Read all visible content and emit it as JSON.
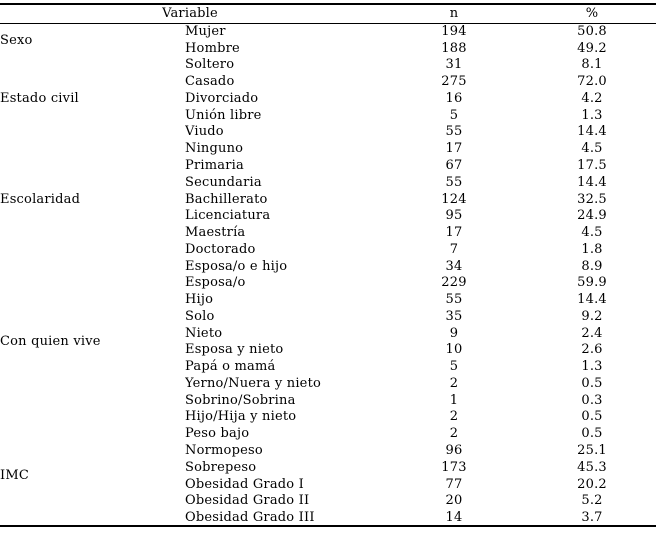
{
  "colors": {
    "background": "#ffffff",
    "text": "#000000",
    "rule": "#000000"
  },
  "table": {
    "headers": {
      "variable": "Variable",
      "n": "n",
      "pct": "%"
    },
    "groups": [
      {
        "label": "Sexo",
        "rows": [
          {
            "category": "Mujer",
            "n": "194",
            "pct": "50.8"
          },
          {
            "category": "Hombre",
            "n": "188",
            "pct": "49.2"
          }
        ]
      },
      {
        "label": "Estado civil",
        "rows": [
          {
            "category": "Soltero",
            "n": "31",
            "pct": "8.1"
          },
          {
            "category": "Casado",
            "n": "275",
            "pct": "72.0"
          },
          {
            "category": "Divorciado",
            "n": "16",
            "pct": "4.2"
          },
          {
            "category": "Unión libre",
            "n": "5",
            "pct": "1.3"
          },
          {
            "category": "Viudo",
            "n": "55",
            "pct": "14.4"
          }
        ]
      },
      {
        "label": "Escolaridad",
        "rows": [
          {
            "category": "Ninguno",
            "n": "17",
            "pct": "4.5"
          },
          {
            "category": "Primaria",
            "n": "67",
            "pct": "17.5"
          },
          {
            "category": "Secundaria",
            "n": "55",
            "pct": "14.4"
          },
          {
            "category": "Bachillerato",
            "n": "124",
            "pct": "32.5"
          },
          {
            "category": "Licenciatura",
            "n": "95",
            "pct": "24.9"
          },
          {
            "category": "Maestría",
            "n": "17",
            "pct": "4.5"
          },
          {
            "category": "Doctorado",
            "n": "7",
            "pct": "1.8"
          }
        ]
      },
      {
        "label": "Con quien vive",
        "rows": [
          {
            "category": "Esposa/o e hijo",
            "n": "34",
            "pct": "8.9"
          },
          {
            "category": "Esposa/o",
            "n": "229",
            "pct": "59.9"
          },
          {
            "category": "Hijo",
            "n": "55",
            "pct": "14.4"
          },
          {
            "category": "Solo",
            "n": "35",
            "pct": "9.2"
          },
          {
            "category": "Nieto",
            "n": "9",
            "pct": "2.4"
          },
          {
            "category": "Esposa y nieto",
            "n": "10",
            "pct": "2.6"
          },
          {
            "category": "Papá o mamá",
            "n": "5",
            "pct": "1.3"
          },
          {
            "category": "Yerno/Nuera y nieto",
            "n": "2",
            "pct": "0.5"
          },
          {
            "category": "Sobrino/Sobrina",
            "n": "1",
            "pct": "0.3"
          },
          {
            "category": "Hijo/Hija y nieto",
            "n": "2",
            "pct": "0.5"
          }
        ]
      },
      {
        "label": "IMC",
        "rows": [
          {
            "category": "Peso bajo",
            "n": "2",
            "pct": "0.5"
          },
          {
            "category": "Normopeso",
            "n": "96",
            "pct": "25.1"
          },
          {
            "category": "Sobrepeso",
            "n": "173",
            "pct": "45.3"
          },
          {
            "category": "Obesidad Grado I",
            "n": "77",
            "pct": "20.2"
          },
          {
            "category": "Obesidad Grado II",
            "n": "20",
            "pct": "5.2"
          },
          {
            "category": "Obesidad Grado III",
            "n": "14",
            "pct": "3.7"
          }
        ]
      }
    ]
  }
}
